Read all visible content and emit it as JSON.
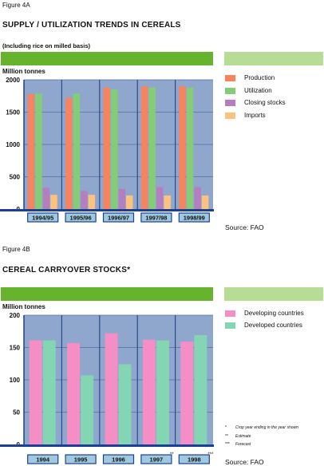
{
  "figure_a": {
    "label": "Figure 4A",
    "title": "SUPPLY / UTILIZATION TRENDS IN CEREALS",
    "subtitle": "(Including rice on milled basis)",
    "source": "Source: FAO"
  },
  "figure_b": {
    "label": "Figure 4B",
    "title": "CEREAL CARRYOVER STOCKS*",
    "source": "Source: FAO",
    "footnotes": [
      {
        "mark": "*",
        "text": "Crop year ending in the year shown"
      },
      {
        "mark": "**",
        "text": "Estimate"
      },
      {
        "mark": "***",
        "text": "Forecast"
      }
    ]
  },
  "colors": {
    "plot_background": "#8fa7cc",
    "axis_blue": "#1c3f96",
    "band_green": "#66b32e",
    "band_pale": "#b7dc96",
    "tick_label_box": "#9ec9de"
  },
  "chart_data": [
    {
      "type": "bar",
      "ylabel": "Million tonnes",
      "ylim": [
        0,
        2000
      ],
      "yticks": [
        0,
        500,
        1000,
        1500,
        2000
      ],
      "grid": true,
      "legend_position": "right",
      "categories": [
        "1994/95",
        "1995/96",
        "1996/97",
        "1997/98",
        "1998/99"
      ],
      "series": [
        {
          "name": "Production",
          "color": "#f7845e",
          "values": [
            1780,
            1720,
            1880,
            1900,
            1900
          ]
        },
        {
          "name": "Utilization",
          "color": "#84cc78",
          "values": [
            1790,
            1790,
            1850,
            1880,
            1880
          ]
        },
        {
          "name": "Closing stocks",
          "color": "#b47fc1",
          "values": [
            330,
            280,
            310,
            340,
            340
          ]
        },
        {
          "name": "Imports",
          "color": "#fcc27e",
          "values": [
            220,
            220,
            210,
            210,
            210
          ]
        }
      ]
    },
    {
      "type": "bar",
      "ylabel": "Million tonnes",
      "ylim": [
        0,
        200
      ],
      "yticks": [
        0,
        50,
        100,
        150,
        200
      ],
      "grid": true,
      "legend_position": "right",
      "categories": [
        "1994",
        "1995",
        "1996",
        "1997",
        "1998"
      ],
      "category_marks": [
        "",
        "",
        "",
        "**",
        "***"
      ],
      "series": [
        {
          "name": "Developing countries",
          "color": "#f68ec6",
          "values": [
            161,
            157,
            172,
            162,
            159
          ]
        },
        {
          "name": "Developed countries",
          "color": "#84d5b4",
          "values": [
            161,
            107,
            124,
            161,
            169
          ]
        }
      ]
    }
  ]
}
